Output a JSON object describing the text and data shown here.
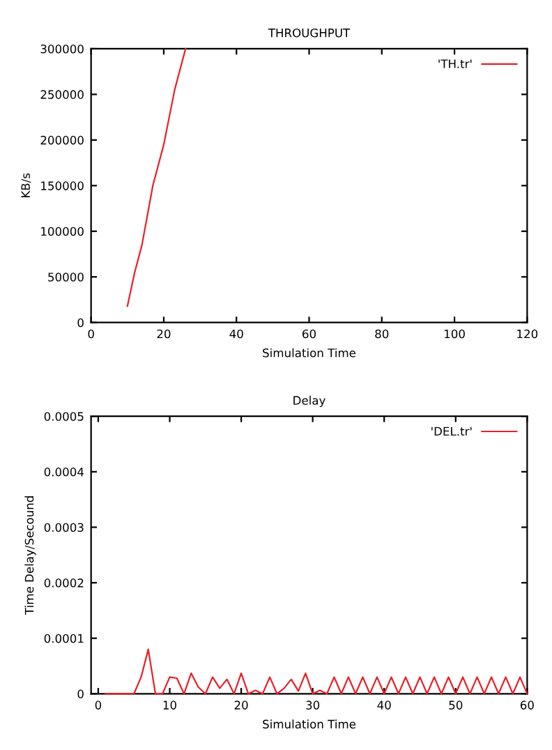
{
  "chart_data": [
    {
      "type": "line",
      "title": "THROUGHPUT",
      "xlabel": "Simulation Time",
      "ylabel": "KB/s",
      "legend": "top right",
      "grid": false,
      "series": [
        {
          "name": "'TH.tr'",
          "color": "#e8202a",
          "x": [
            10,
            12,
            14,
            17,
            20,
            23,
            26
          ],
          "values": [
            18000,
            55000,
            85000,
            150000,
            195000,
            255000,
            300000
          ]
        }
      ],
      "xlim": [
        0,
        120
      ],
      "xticks": [
        0,
        20,
        40,
        60,
        80,
        100,
        120
      ],
      "ylim": [
        0,
        300000
      ],
      "yticks": [
        0,
        50000,
        100000,
        150000,
        200000,
        250000,
        300000
      ]
    },
    {
      "type": "line",
      "title": "Delay",
      "xlabel": "Simulation Time",
      "ylabel": "Time Delay/Secound",
      "legend": "top right",
      "grid": false,
      "series": [
        {
          "name": "'DEL.tr'",
          "color": "#e8202a",
          "x": [
            1,
            2,
            3,
            4,
            5,
            6,
            7,
            8,
            9,
            10,
            11,
            12,
            13,
            14,
            15,
            16,
            17,
            18,
            19,
            20,
            21,
            22,
            23,
            24,
            25,
            26,
            27,
            28,
            29,
            30,
            31,
            32,
            33,
            34,
            35,
            36,
            37,
            38,
            39,
            40,
            41,
            42,
            43,
            44,
            45,
            46,
            47,
            48,
            49,
            50,
            51,
            52,
            53,
            54,
            55,
            56,
            57,
            58,
            59,
            60
          ],
          "values": [
            0,
            0,
            0,
            0,
            0,
            3e-05,
            8e-05,
            0,
            0,
            3e-05,
            2.8e-05,
            0,
            3.7e-05,
            1.2e-05,
            0,
            3e-05,
            1e-05,
            2.6e-05,
            0,
            3.7e-05,
            0,
            6e-06,
            0,
            3e-05,
            0,
            1e-05,
            2.6e-05,
            5e-06,
            3.7e-05,
            0,
            6e-06,
            0,
            3e-05,
            0,
            3e-05,
            0,
            3e-05,
            0,
            3e-05,
            0,
            3e-05,
            0,
            3e-05,
            0,
            3e-05,
            0,
            3e-05,
            0,
            3e-05,
            0,
            3e-05,
            0,
            3e-05,
            0,
            3e-05,
            0,
            3e-05,
            0,
            3e-05,
            0
          ]
        }
      ],
      "xlim": [
        -1,
        60
      ],
      "xticks": [
        0,
        10,
        20,
        30,
        40,
        50,
        60
      ],
      "ylim": [
        0,
        0.0005
      ],
      "yticks": [
        {
          "value": 0,
          "label": "0"
        },
        {
          "value": 0.0001,
          "label": "0.0001"
        },
        {
          "value": 0.0002,
          "label": "0.0002"
        },
        {
          "value": 0.0003,
          "label": "0.0003"
        },
        {
          "value": 0.0004,
          "label": "0.0004"
        },
        {
          "value": 0.0005,
          "label": "0.0005"
        }
      ]
    }
  ]
}
